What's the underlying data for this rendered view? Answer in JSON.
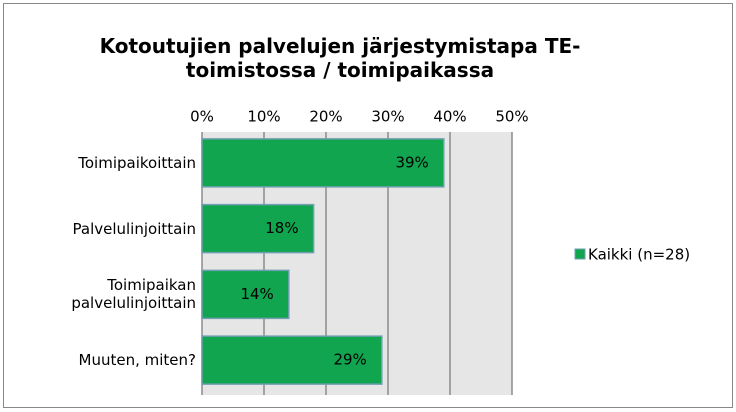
{
  "chart_data": {
    "type": "bar",
    "orientation": "horizontal",
    "title": "Kotoutujien palvelujen järjestymistapa TE-toimistossa / toimipaikassa",
    "categories": [
      "Toimipaikoittain",
      "Palvelulinjoittain",
      "Toimipaikan palvelulinjoittain",
      "Muuten, miten?"
    ],
    "series": [
      {
        "name": "Kaikki (n=28)",
        "color": "#10a54e",
        "values": [
          39,
          18,
          14,
          29
        ],
        "value_labels": [
          "39%",
          "18%",
          "14%",
          "29%"
        ]
      }
    ],
    "xlim": [
      0,
      50
    ],
    "xticks": [
      {
        "value": 0,
        "label": "0%"
      },
      {
        "value": 10,
        "label": "10%"
      },
      {
        "value": 20,
        "label": "20%"
      },
      {
        "value": 30,
        "label": "30%"
      },
      {
        "value": 40,
        "label": "40%"
      },
      {
        "value": 50,
        "label": "50%"
      }
    ],
    "grid": true,
    "legend": "right"
  }
}
